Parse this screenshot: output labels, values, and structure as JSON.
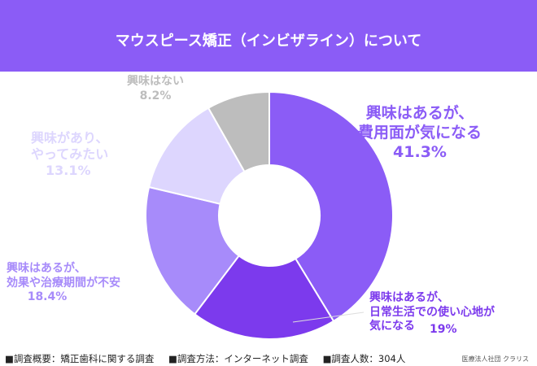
{
  "title": "マウスピース矯正（インビザライン）について",
  "chart_data": {
    "type": "pie",
    "title": "マウスピース矯正（インビザライン）について",
    "slices": [
      {
        "label_lines": [
          "興味はあるが、",
          "費用面が気になる"
        ],
        "value": 41.3,
        "value_label": "41.3%",
        "color": "#8b5cf6"
      },
      {
        "label_lines": [
          "興味はあるが、",
          "日常生活での使い心地が",
          "気になる"
        ],
        "value": 19,
        "value_label": "19%",
        "color": "#7c3aed"
      },
      {
        "label_lines": [
          "興味はあるが、",
          "効果や治療期間が不安"
        ],
        "value": 18.4,
        "value_label": "18.4%",
        "color": "#a78bfa"
      },
      {
        "label_lines": [
          "興味があり、",
          "やってみたい"
        ],
        "value": 13.1,
        "value_label": "13.1%",
        "color": "#ddd6fe"
      },
      {
        "label_lines": [
          "興味はない"
        ],
        "value": 8.2,
        "value_label": "8.2%",
        "color": "#bdbdbd"
      }
    ]
  },
  "footer": {
    "overview": "■調査概要：矯正歯科に関する調査",
    "method": "■調査方法：インターネット調査",
    "count": "■調査人数：304人",
    "org": "医療法人社団 クラリス"
  }
}
